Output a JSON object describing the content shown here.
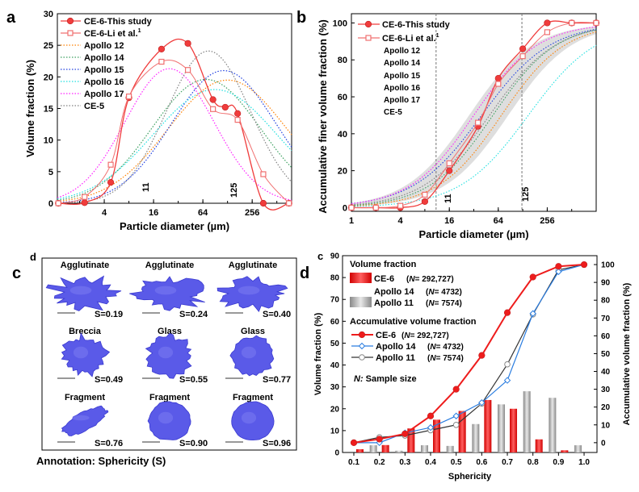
{
  "panel_labels": {
    "a": "a",
    "b": "b",
    "c": "c",
    "d": "d",
    "d_small": "d",
    "c_small": "c"
  },
  "chart_data": [
    {
      "id": "a",
      "type": "line",
      "xlabel": "Particle diameter (µm)",
      "ylabel": "Volume fraction (%)",
      "xscale": "log2",
      "xlim_um": [
        1.07,
        776
      ],
      "ylim": [
        0,
        30
      ],
      "xticks": [
        4,
        16,
        64,
        256
      ],
      "yticks": [
        0,
        5,
        10,
        15,
        20,
        25,
        30
      ],
      "annotations": [
        "11",
        "125"
      ],
      "legend": "top-left",
      "series": [
        {
          "name": "CE-6-This study",
          "sup": "",
          "color": "#f03c3c",
          "marker": "circle",
          "x": [
            1.1,
            2.3,
            4.8,
            8,
            20,
            42,
            85,
            120,
            170,
            350,
            720
          ],
          "y": [
            0,
            0.1,
            3.3,
            16.7,
            24.4,
            25.3,
            16.4,
            15.2,
            14.2,
            0,
            0
          ]
        },
        {
          "name": "CE-6-Li et al.",
          "sup": "1",
          "color": "#f07070",
          "marker": "square",
          "x": [
            1.1,
            2.3,
            4.8,
            8,
            20,
            42,
            85,
            170,
            350,
            720
          ],
          "y": [
            0,
            1.0,
            6.1,
            16.9,
            22.4,
            21.1,
            14.9,
            13.2,
            4.6,
            0
          ]
        },
        {
          "name": "Apollo 12",
          "color": "#ff8000",
          "peak_um": 128,
          "peak": 19.5,
          "spread": 2.4
        },
        {
          "name": "Apollo 14",
          "color": "#3ca060",
          "peak_um": 70,
          "peak": 19.6,
          "spread": 2.2
        },
        {
          "name": "Apollo 15",
          "color": "#2040e0",
          "peak_um": 115,
          "peak": 21.0,
          "spread": 2.1
        },
        {
          "name": "Apollo 16",
          "color": "#20e0e0",
          "peak_um": 90,
          "peak": 18.0,
          "spread": 2.5
        },
        {
          "name": "Apollo 17",
          "color": "#ff20ff",
          "peak_um": 25,
          "peak": 21.3,
          "spread": 1.8
        },
        {
          "name": "CE-5",
          "color": "#808080",
          "peak_um": 75,
          "peak": 24.1,
          "spread": 1.7
        }
      ]
    },
    {
      "id": "b",
      "type": "line",
      "xlabel": "Particle diameter (µm)",
      "ylabel": "Accumulative finer volume fraction (%)",
      "xscale": "log2",
      "xlim_um": [
        1,
        1024
      ],
      "ylim": [
        -2,
        105
      ],
      "xticks": [
        1,
        4,
        16,
        64,
        256
      ],
      "yticks": [
        0,
        20,
        40,
        60,
        80,
        100
      ],
      "reference_lines_um": [
        11,
        125
      ],
      "annotations": [
        "11",
        "125"
      ],
      "legend": "top-left",
      "band_median_um": [
        28,
        85
      ],
      "series": [
        {
          "name": "CE-6-This study",
          "sup": "",
          "color": "#f03c3c",
          "marker": "circle",
          "x": [
            1,
            2,
            4,
            8,
            16,
            36,
            64,
            128,
            256,
            512,
            1024
          ],
          "y": [
            0,
            0,
            0,
            3.3,
            20,
            44,
            70,
            86,
            100,
            100,
            100
          ]
        },
        {
          "name": "CE-6-Li et al.",
          "sup": "1",
          "color": "#f07070",
          "marker": "square",
          "x": [
            1,
            2,
            4,
            8,
            16,
            36,
            64,
            128,
            256,
            512,
            1024
          ],
          "y": [
            0,
            0,
            1,
            7,
            24,
            46,
            67,
            82,
            95,
            100,
            100
          ]
        },
        {
          "name": "Apollo 12",
          "color": "#ff8000",
          "median_um": 70,
          "spread": 1.3
        },
        {
          "name": "Apollo 14",
          "color": "#3ca060",
          "median_um": 55,
          "spread": 1.3
        },
        {
          "name": "Apollo 15",
          "color": "#2040e0",
          "median_um": 40,
          "spread": 1.4
        },
        {
          "name": "Apollo 16",
          "color": "#20e0e0",
          "median_um": 150,
          "spread": 1.4
        },
        {
          "name": "Apollo 17",
          "color": "#ff20ff",
          "median_um": 32,
          "spread": 1.3
        },
        {
          "name": "CE-5",
          "color": "#808080",
          "median_um": 50,
          "spread": 1.35
        }
      ]
    },
    {
      "id": "d",
      "type": "bar",
      "xlabel": "Sphericity",
      "ylabel": "Volume fraction (%)",
      "y2label": "Accumulative volume fraction (%)",
      "categories": [
        "0.1",
        "0.2",
        "0.3",
        "0.4",
        "0.5",
        "0.6",
        "0.7",
        "0.8",
        "0.9",
        "1.0"
      ],
      "ylim": [
        0,
        90
      ],
      "y2lim": [
        -5.5,
        105
      ],
      "yticks": [
        0,
        10,
        20,
        30,
        40,
        50,
        60,
        70,
        80,
        90
      ],
      "y2ticks": [
        0,
        10,
        20,
        30,
        40,
        50,
        60,
        70,
        80,
        90,
        100
      ],
      "legend_title_bars": "Volume fraction",
      "legend_title_lines": "Accumulative volume fraction",
      "legend_note_n": "N:",
      "legend_note": "Sample size",
      "bar_series": [
        {
          "name": "CE-6",
          "n_label": "N",
          "n_value": "= 292,727",
          "color": "#e51515",
          "values": [
            1.5,
            3.4,
            11,
            15,
            19,
            24,
            20,
            6,
            1,
            0
          ]
        },
        {
          "name": "Apollo 14",
          "n_label": "N",
          "n_value": "= 4732",
          "color": "#ffffff",
          "values": null
        },
        {
          "name": "Apollo 11",
          "n_label": "N",
          "n_value": "= 7574",
          "color": "#9a9a9a",
          "values": [
            0,
            3.3,
            0.8,
            3.3,
            3,
            13,
            22,
            28,
            25,
            3.3
          ]
        }
      ],
      "line_series": [
        {
          "name": "CE-6",
          "n_label": "N",
          "n_value": "= 292,727",
          "color": "#ee1c1c",
          "marker": "circle",
          "values": [
            0,
            2,
            5,
            15,
            30,
            49,
            73,
            93,
            99,
            100
          ]
        },
        {
          "name": "Apollo 14",
          "n_label": "N",
          "n_value": "= 4732",
          "color": "#2a7de0",
          "marker": "diamond",
          "values": [
            0,
            0,
            5.5,
            8.5,
            15,
            22.5,
            35,
            72.5,
            96,
            100
          ]
        },
        {
          "name": "Apollo 11",
          "n_label": "N",
          "n_value": "= 7574",
          "color": "#333333",
          "marker": "open-circle",
          "values": [
            0,
            3,
            4,
            7,
            10,
            22,
            44,
            72,
            97,
            100
          ]
        }
      ]
    }
  ],
  "particles": {
    "items": [
      {
        "type": "Agglutinate",
        "s": "S=0.19",
        "sphericity": 0.19
      },
      {
        "type": "Agglutinate",
        "s": "S=0.24",
        "sphericity": 0.24
      },
      {
        "type": "Agglutinate",
        "s": "S=0.40",
        "sphericity": 0.4
      },
      {
        "type": "Breccia",
        "s": "S=0.49",
        "sphericity": 0.49
      },
      {
        "type": "Glass",
        "s": "S=0.55",
        "sphericity": 0.55
      },
      {
        "type": "Glass",
        "s": "S=0.77",
        "sphericity": 0.77
      },
      {
        "type": "Fragment",
        "s": "S=0.76",
        "sphericity": 0.76
      },
      {
        "type": "Fragment",
        "s": "S=0.90",
        "sphericity": 0.9
      },
      {
        "type": "Fragment",
        "s": "S=0.96",
        "sphericity": 0.96
      }
    ],
    "annotation": "Annotation:  Sphericity (S)",
    "particle_color": "#5a5ae8"
  }
}
